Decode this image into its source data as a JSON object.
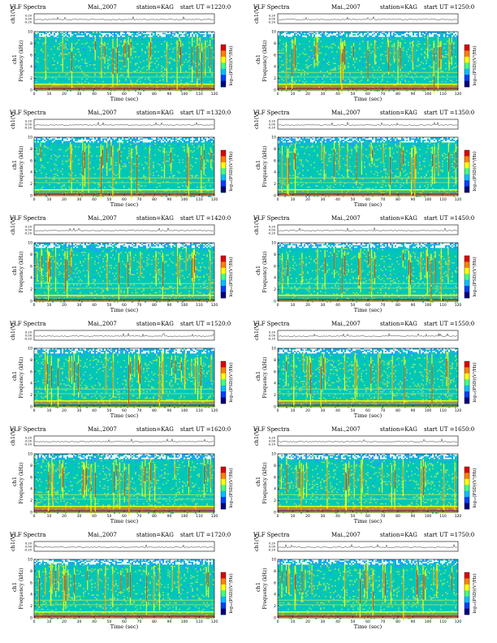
{
  "panels_common": {
    "instrument": "VLF Spectra",
    "date": "Mai.,2007",
    "station": "station=KAG",
    "start_prefix": "start  UT  =",
    "ch_label": "ch1(V)",
    "amp_ticks": [
      "0.20",
      "0.00",
      "-0.20"
    ],
    "ylabel_top": "ch1",
    "ylabel": "Frequency  (kHz)",
    "xlabel": "Time  (sec)",
    "colorbar_label": "log₁₀(PSD)(V²/Hz)"
  },
  "chart_data": [
    {
      "type": "heatmap",
      "title": "VLF Spectra",
      "start_ut": "1220:0",
      "xlim": [
        0,
        120
      ],
      "ylim": [
        0,
        10
      ],
      "xticks": [
        0,
        10,
        20,
        30,
        40,
        50,
        60,
        70,
        80,
        90,
        100,
        110,
        120
      ],
      "yticks": [
        0,
        2,
        4,
        6,
        8,
        10
      ]
    },
    {
      "type": "heatmap",
      "title": "VLF Spectra",
      "start_ut": "1250:0",
      "xlim": [
        0,
        120
      ],
      "ylim": [
        0,
        10
      ],
      "xticks": [
        0,
        10,
        20,
        30,
        40,
        50,
        60,
        70,
        80,
        90,
        100,
        110,
        120
      ],
      "yticks": [
        0,
        2,
        4,
        6,
        8,
        10
      ]
    },
    {
      "type": "heatmap",
      "title": "VLF Spectra",
      "start_ut": "1320:0",
      "xlim": [
        0,
        120
      ],
      "ylim": [
        0,
        10
      ],
      "xticks": [
        0,
        10,
        20,
        30,
        40,
        50,
        60,
        70,
        80,
        90,
        100,
        110,
        120
      ],
      "yticks": [
        0,
        2,
        4,
        6,
        8,
        10
      ]
    },
    {
      "type": "heatmap",
      "title": "VLF Spectra",
      "start_ut": "1350:0",
      "xlim": [
        0,
        120
      ],
      "ylim": [
        0,
        10
      ],
      "xticks": [
        0,
        10,
        20,
        30,
        40,
        50,
        60,
        70,
        80,
        90,
        100,
        110,
        120
      ],
      "yticks": [
        0,
        2,
        4,
        6,
        8,
        10
      ]
    },
    {
      "type": "heatmap",
      "title": "VLF Spectra",
      "start_ut": "1420:0",
      "xlim": [
        0,
        120
      ],
      "ylim": [
        0,
        10
      ],
      "xticks": [
        0,
        10,
        20,
        30,
        40,
        50,
        60,
        70,
        80,
        90,
        100,
        110,
        120
      ],
      "yticks": [
        0,
        2,
        4,
        6,
        8,
        10
      ]
    },
    {
      "type": "heatmap",
      "title": "VLF Spectra",
      "start_ut": "1450:0",
      "xlim": [
        0,
        120
      ],
      "ylim": [
        0,
        10
      ],
      "xticks": [
        0,
        10,
        20,
        30,
        40,
        50,
        60,
        70,
        80,
        90,
        100,
        110,
        120
      ],
      "yticks": [
        0,
        2,
        4,
        6,
        8,
        10
      ]
    },
    {
      "type": "heatmap",
      "title": "VLF Spectra",
      "start_ut": "1520:0",
      "xlim": [
        0,
        120
      ],
      "ylim": [
        0,
        10
      ],
      "xticks": [
        0,
        10,
        20,
        30,
        40,
        50,
        60,
        70,
        80,
        90,
        100,
        110,
        120
      ],
      "yticks": [
        0,
        2,
        4,
        6,
        8,
        10
      ]
    },
    {
      "type": "heatmap",
      "title": "VLF Spectra",
      "start_ut": "1550:0",
      "xlim": [
        0,
        120
      ],
      "ylim": [
        0,
        10
      ],
      "xticks": [
        0,
        10,
        20,
        30,
        40,
        50,
        60,
        70,
        80,
        90,
        100,
        110,
        120
      ],
      "yticks": [
        0,
        2,
        4,
        6,
        8,
        10
      ]
    },
    {
      "type": "heatmap",
      "title": "VLF Spectra",
      "start_ut": "1620:0",
      "xlim": [
        0,
        120
      ],
      "ylim": [
        0,
        10
      ],
      "xticks": [
        0,
        10,
        20,
        30,
        40,
        50,
        60,
        70,
        80,
        90,
        100,
        110,
        120
      ],
      "yticks": [
        0,
        2,
        4,
        6,
        8,
        10
      ]
    },
    {
      "type": "heatmap",
      "title": "VLF Spectra",
      "start_ut": "1650:0",
      "xlim": [
        0,
        120
      ],
      "ylim": [
        0,
        10
      ],
      "xticks": [
        0,
        10,
        20,
        30,
        40,
        50,
        60,
        70,
        80,
        90,
        100,
        110,
        120
      ],
      "yticks": [
        0,
        2,
        4,
        6,
        8,
        10
      ]
    },
    {
      "type": "heatmap",
      "title": "VLF Spectra",
      "start_ut": "1720:0",
      "xlim": [
        0,
        120
      ],
      "ylim": [
        0,
        10
      ],
      "xticks": [
        0,
        10,
        20,
        30,
        40,
        50,
        60,
        70,
        80,
        90,
        100,
        110,
        120
      ],
      "yticks": [
        0,
        2,
        4,
        6,
        8,
        10
      ]
    },
    {
      "type": "heatmap",
      "title": "VLF Spectra",
      "start_ut": "1750:0",
      "xlim": [
        0,
        120
      ],
      "ylim": [
        0,
        10
      ],
      "xticks": [
        0,
        10,
        20,
        30,
        40,
        50,
        60,
        70,
        80,
        90,
        100,
        110,
        120
      ],
      "yticks": [
        0,
        2,
        4,
        6,
        8,
        10
      ]
    }
  ],
  "colors": {
    "background": "#00c8b4",
    "midband": "#7ee078",
    "quiet": "#1ea0ff",
    "strong": "#ffff00",
    "hot": "#ff7800",
    "peak": "#d00000",
    "void": "#ffffff",
    "colorbar": [
      "#000080",
      "#0040ff",
      "#00c0ff",
      "#40ff80",
      "#ffff00",
      "#ff8000",
      "#e00000"
    ]
  }
}
